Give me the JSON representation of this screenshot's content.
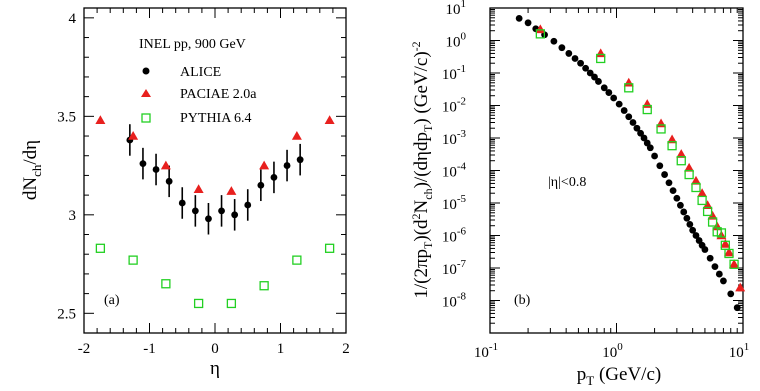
{
  "chart_data": [
    {
      "type": "scatter",
      "panel_label": "(a)",
      "annotation": "INEL pp, 900 GeV",
      "xlabel": "η",
      "ylabel_parts": {
        "main": "dN",
        "sub": "ch",
        "tail": "/dη"
      },
      "xlim": [
        -2,
        2
      ],
      "ylim": [
        2.4,
        4.05
      ],
      "xticks": [
        -2,
        -1,
        0,
        1,
        2
      ],
      "yticks": [
        2.5,
        3,
        3.5,
        4
      ],
      "xtick_labels": [
        "-2",
        "-1",
        "0",
        "1",
        "2"
      ],
      "ytick_labels": [
        "2.5",
        "3",
        "3.5",
        "4"
      ],
      "legend_position": "top-right",
      "series": [
        {
          "name": "ALICE",
          "marker": "circle",
          "color": "#000000",
          "x": [
            -1.3,
            -1.1,
            -0.9,
            -0.7,
            -0.5,
            -0.3,
            -0.1,
            0.1,
            0.3,
            0.5,
            0.7,
            0.9,
            1.1,
            1.3
          ],
          "y": [
            3.38,
            3.26,
            3.23,
            3.17,
            3.06,
            3.02,
            2.98,
            3.02,
            3.0,
            3.05,
            3.15,
            3.19,
            3.25,
            3.28
          ],
          "err": [
            0.08,
            0.08,
            0.08,
            0.08,
            0.08,
            0.08,
            0.08,
            0.08,
            0.08,
            0.08,
            0.08,
            0.08,
            0.08,
            0.08
          ]
        },
        {
          "name": "PACIAE 2.0a",
          "marker": "triangle",
          "color": "#e8201e",
          "x": [
            -1.75,
            -1.25,
            -0.75,
            -0.25,
            0.25,
            0.75,
            1.25,
            1.75
          ],
          "y": [
            3.48,
            3.4,
            3.25,
            3.13,
            3.12,
            3.25,
            3.4,
            3.48
          ]
        },
        {
          "name": "PYTHIA 6.4",
          "marker": "open-square",
          "color": "#22d022",
          "x": [
            -1.75,
            -1.25,
            -0.75,
            -0.25,
            0.25,
            0.75,
            1.25,
            1.75
          ],
          "y": [
            2.83,
            2.77,
            2.65,
            2.55,
            2.55,
            2.64,
            2.77,
            2.83
          ]
        }
      ]
    },
    {
      "type": "scatter",
      "panel_label": "(b)",
      "annotation": "|η|<0.8",
      "xlabel_parts": {
        "main": "p",
        "sub": "T",
        "tail": " (GeV/c)"
      },
      "ylabel": "1/(2πp_T)(d^2N_ch)/(dηdp_T) (GeV/c)^-2",
      "x_scale": "log",
      "y_scale": "log",
      "xlim": [
        0.1,
        10
      ],
      "ylim": [
        1e-09,
        10
      ],
      "xtick_exponents": [
        "-1",
        "0",
        "1"
      ],
      "ytick_exponents": [
        "-8",
        "-7",
        "-6",
        "-5",
        "-4",
        "-3",
        "-2",
        "-1",
        "0",
        "1"
      ],
      "tick_base": "10",
      "series": [
        {
          "name": "ALICE",
          "marker": "circle",
          "color": "#000000",
          "x": [
            0.17,
            0.2,
            0.23,
            0.27,
            0.32,
            0.37,
            0.42,
            0.47,
            0.52,
            0.57,
            0.62,
            0.67,
            0.72,
            0.8,
            0.87,
            0.95,
            1.05,
            1.15,
            1.25,
            1.35,
            1.45,
            1.55,
            1.65,
            1.75,
            1.85,
            2.0,
            2.2,
            2.4,
            2.6,
            2.8,
            3.0,
            3.2,
            3.4,
            3.6,
            3.8,
            4.0,
            4.25,
            4.5,
            4.75,
            5.0,
            5.5,
            6.0,
            6.5,
            7.0,
            8.0,
            9.0
          ],
          "y": [
            4.8,
            3.5,
            2.3,
            1.5,
            0.95,
            0.6,
            0.4,
            0.28,
            0.2,
            0.14,
            0.1,
            0.075,
            0.055,
            0.035,
            0.025,
            0.017,
            0.011,
            0.007,
            0.0045,
            0.003,
            0.002,
            0.0014,
            0.001,
            0.0007,
            0.0005,
            0.00028,
            0.00014,
            7.5e-05,
            4.2e-05,
            2.4e-05,
            1.4e-05,
            8.5e-06,
            5.3e-06,
            3.4e-06,
            2.2e-06,
            1.45e-06,
            1e-06,
            7e-07,
            5e-07,
            3.7e-07,
            2e-07,
            1.1e-07,
            6.5e-08,
            4e-08,
            1.6e-08,
            6e-09
          ]
        },
        {
          "name": "PACIAE 2.0a",
          "marker": "triangle",
          "color": "#e8201e",
          "x": [
            0.25,
            0.75,
            1.25,
            1.75,
            2.25,
            2.75,
            3.25,
            3.75,
            4.25,
            4.75,
            5.25,
            5.75,
            6.25,
            6.75,
            7.25,
            7.75,
            8.5,
            9.5
          ],
          "y": [
            2.2,
            0.4,
            0.05,
            0.011,
            0.0028,
            0.0009,
            0.00032,
            0.00012,
            4.8e-05,
            2e-05,
            8.5e-06,
            4e-06,
            1.9e-06,
            1e-06,
            5.5e-07,
            3e-07,
            1.3e-07,
            2.5e-08
          ]
        },
        {
          "name": "PYTHIA 6.4",
          "marker": "open-square",
          "color": "#22d022",
          "x": [
            0.25,
            0.75,
            1.25,
            1.75,
            2.25,
            2.75,
            3.25,
            3.75,
            4.25,
            4.75,
            5.25,
            5.75,
            6.25,
            6.75,
            7.25,
            7.75,
            8.5
          ],
          "y": [
            1.6,
            0.28,
            0.035,
            0.0075,
            0.0019,
            0.00058,
            0.0002,
            7.5e-05,
            3e-05,
            1.2e-05,
            5.5e-06,
            2.6e-06,
            1.3e-06,
            1.2e-06,
            5e-07,
            2.8e-07,
            1.3e-07
          ]
        }
      ]
    }
  ]
}
